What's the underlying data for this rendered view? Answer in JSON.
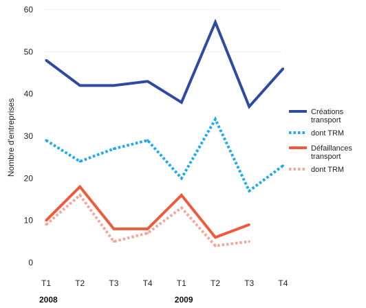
{
  "chart_data": {
    "type": "line",
    "title": "",
    "xlabel": "",
    "ylabel": "Nombre d'entreprises",
    "ylim": [
      0,
      60
    ],
    "yticks": [
      0,
      10,
      20,
      30,
      40,
      50,
      60
    ],
    "grid": false,
    "legend_position": "right",
    "categories": [
      "T1",
      "T2",
      "T3",
      "T4",
      "T1",
      "T2",
      "T3",
      "T4"
    ],
    "year_labels": [
      {
        "label": "2008",
        "category_index": 0
      },
      {
        "label": "2009",
        "category_index": 4
      }
    ],
    "series": [
      {
        "name": "Créations transport",
        "legend_lines": [
          "Créations",
          "transport"
        ],
        "color": "#2e4aa3",
        "style": "solid",
        "values": [
          48,
          42,
          42,
          43,
          38,
          57,
          37,
          46
        ]
      },
      {
        "name": "dont TRM",
        "legend_lines": [
          "dont TRM"
        ],
        "color": "#1eaaf0",
        "style": "dotted",
        "values": [
          29,
          24,
          27,
          29,
          20,
          34,
          17,
          23
        ]
      },
      {
        "name": "Défaillances transport",
        "legend_lines": [
          "Défaillances",
          "transport"
        ],
        "color": "#ef5a3c",
        "style": "solid",
        "values": [
          10,
          18,
          8,
          8,
          16,
          6,
          9,
          null
        ]
      },
      {
        "name": "dont TRM",
        "legend_lines": [
          "dont TRM"
        ],
        "color": "#f4a89a",
        "style": "dotted",
        "values": [
          9,
          16,
          5,
          7,
          13,
          4,
          5,
          null
        ]
      }
    ]
  }
}
